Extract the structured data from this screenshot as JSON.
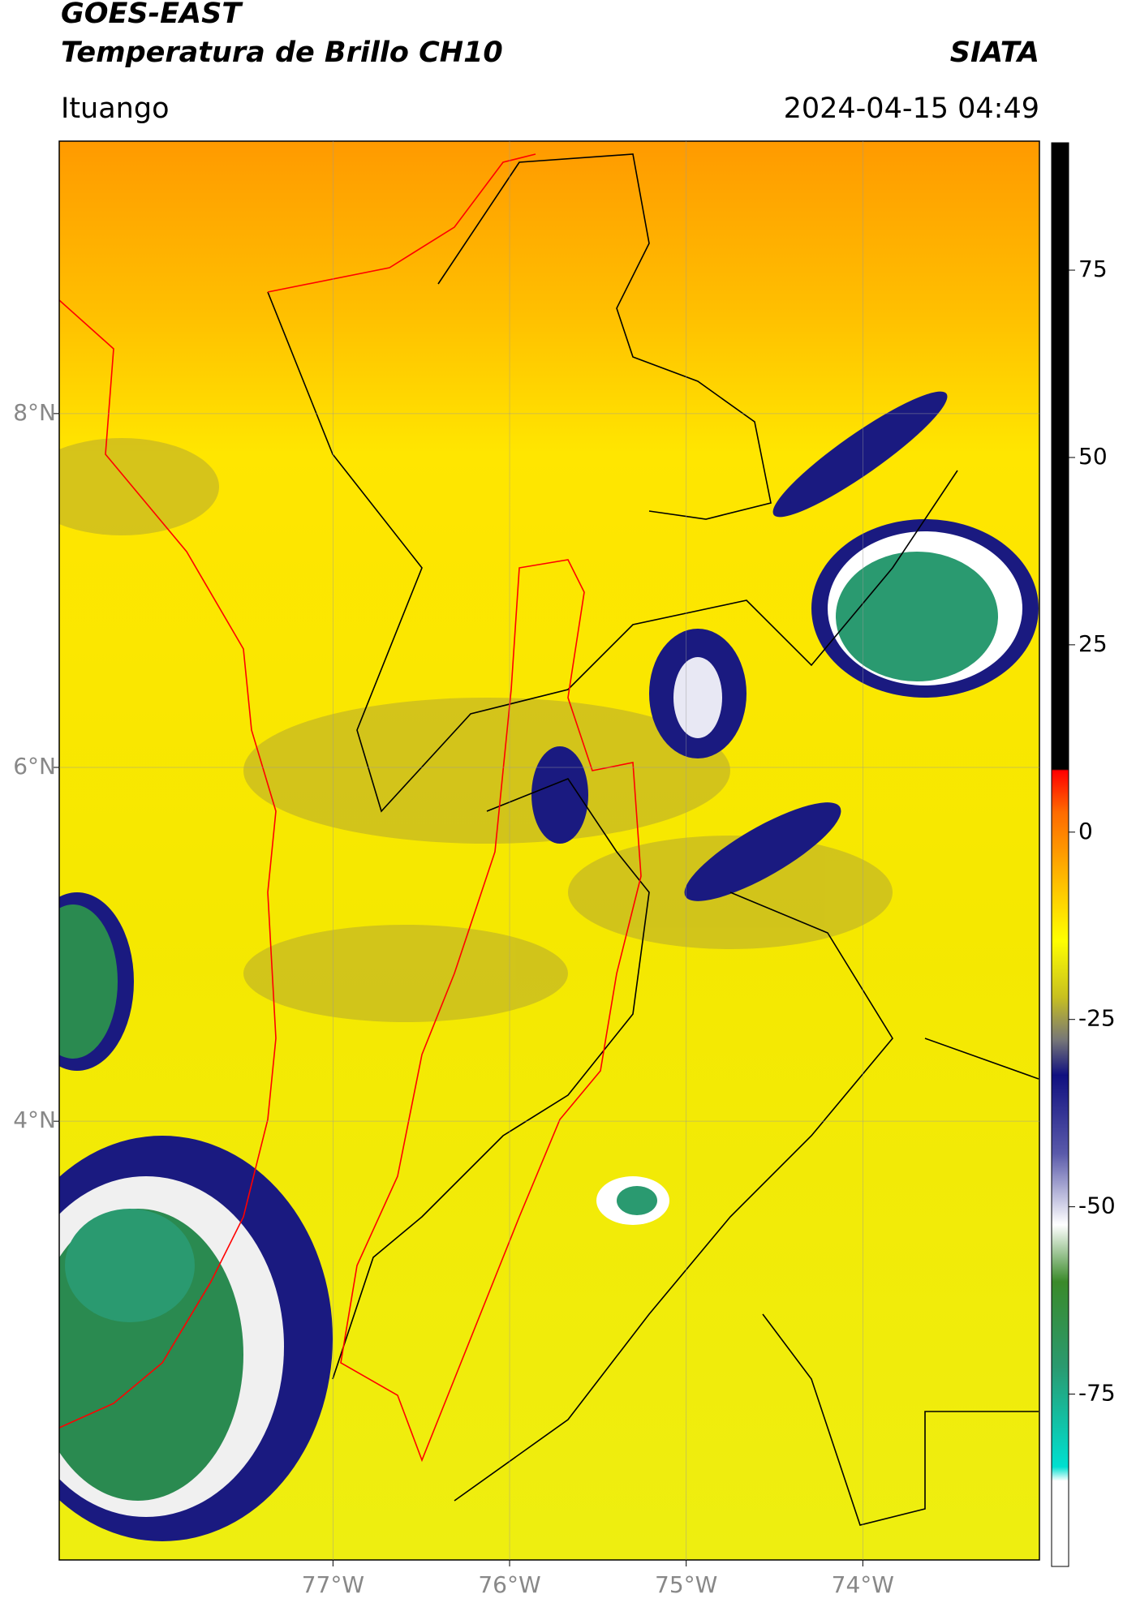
{
  "header": {
    "title": "GOES-EAST",
    "subtitle": "Temperatura de Brillo CH10",
    "brand": "SIATA",
    "location": "Ituango",
    "timestamp": "2024-04-15 04:49"
  },
  "map": {
    "xlim": [
      -78.55,
      -73.0
    ],
    "ylim": [
      1.52,
      9.54
    ],
    "xticks": [
      {
        "value": -77,
        "label": "77°W"
      },
      {
        "value": -76,
        "label": "76°W"
      },
      {
        "value": -75,
        "label": "75°W"
      },
      {
        "value": -74,
        "label": "74°W"
      }
    ],
    "yticks": [
      {
        "value": 8,
        "label": "8°N"
      },
      {
        "value": 6,
        "label": "6°N"
      },
      {
        "value": 4,
        "label": "4°N"
      }
    ],
    "grid": true
  },
  "colorbar": {
    "lim": [
      -98,
      92
    ],
    "ticks": [
      75,
      50,
      25,
      0,
      -25,
      -50,
      -75
    ]
  }
}
